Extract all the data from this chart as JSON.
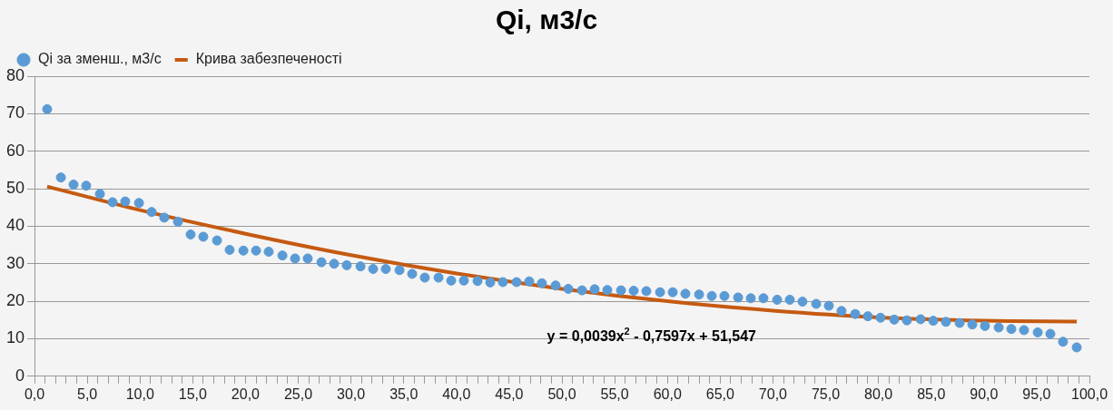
{
  "chart_data": {
    "type": "scatter",
    "title": "Qi, м3/с",
    "xlim": [
      0,
      100
    ],
    "xticks": [
      {
        "value": 0,
        "label": "0,0"
      },
      {
        "value": 1,
        "label": null
      },
      {
        "value": 2,
        "label": null
      },
      {
        "value": 3,
        "label": null
      },
      {
        "value": 4,
        "label": null
      },
      {
        "value": 5,
        "label": "5,0"
      },
      {
        "value": 6,
        "label": null
      },
      {
        "value": 7,
        "label": null
      },
      {
        "value": 8,
        "label": null
      },
      {
        "value": 9,
        "label": null
      },
      {
        "value": 10,
        "label": "10,0"
      },
      {
        "value": 11,
        "label": null
      },
      {
        "value": 12,
        "label": null
      },
      {
        "value": 13,
        "label": null
      },
      {
        "value": 14,
        "label": null
      },
      {
        "value": 15,
        "label": "15,0"
      },
      {
        "value": 16,
        "label": null
      },
      {
        "value": 17,
        "label": null
      },
      {
        "value": 18,
        "label": null
      },
      {
        "value": 19,
        "label": null
      },
      {
        "value": 20,
        "label": "20,0"
      },
      {
        "value": 21,
        "label": null
      },
      {
        "value": 22,
        "label": null
      },
      {
        "value": 23,
        "label": null
      },
      {
        "value": 24,
        "label": null
      },
      {
        "value": 25,
        "label": "25,0"
      },
      {
        "value": 26,
        "label": null
      },
      {
        "value": 27,
        "label": null
      },
      {
        "value": 28,
        "label": null
      },
      {
        "value": 29,
        "label": null
      },
      {
        "value": 30,
        "label": "30,0"
      },
      {
        "value": 31,
        "label": null
      },
      {
        "value": 32,
        "label": null
      },
      {
        "value": 33,
        "label": null
      },
      {
        "value": 34,
        "label": null
      },
      {
        "value": 35,
        "label": "35,0"
      },
      {
        "value": 36,
        "label": null
      },
      {
        "value": 37,
        "label": null
      },
      {
        "value": 38,
        "label": null
      },
      {
        "value": 39,
        "label": null
      },
      {
        "value": 40,
        "label": "40,0"
      },
      {
        "value": 41,
        "label": null
      },
      {
        "value": 42,
        "label": null
      },
      {
        "value": 43,
        "label": null
      },
      {
        "value": 44,
        "label": null
      },
      {
        "value": 45,
        "label": "45,0"
      },
      {
        "value": 46,
        "label": null
      },
      {
        "value": 47,
        "label": null
      },
      {
        "value": 48,
        "label": null
      },
      {
        "value": 49,
        "label": null
      },
      {
        "value": 50,
        "label": "50,0"
      },
      {
        "value": 51,
        "label": null
      },
      {
        "value": 52,
        "label": null
      },
      {
        "value": 53,
        "label": null
      },
      {
        "value": 54,
        "label": null
      },
      {
        "value": 55,
        "label": "55,0"
      },
      {
        "value": 56,
        "label": null
      },
      {
        "value": 57,
        "label": null
      },
      {
        "value": 58,
        "label": null
      },
      {
        "value": 59,
        "label": null
      },
      {
        "value": 60,
        "label": "60,0"
      },
      {
        "value": 61,
        "label": null
      },
      {
        "value": 62,
        "label": null
      },
      {
        "value": 63,
        "label": null
      },
      {
        "value": 64,
        "label": null
      },
      {
        "value": 65,
        "label": "65,0"
      },
      {
        "value": 66,
        "label": null
      },
      {
        "value": 67,
        "label": null
      },
      {
        "value": 68,
        "label": null
      },
      {
        "value": 69,
        "label": null
      },
      {
        "value": 70,
        "label": "70,0"
      },
      {
        "value": 71,
        "label": null
      },
      {
        "value": 72,
        "label": null
      },
      {
        "value": 73,
        "label": null
      },
      {
        "value": 74,
        "label": null
      },
      {
        "value": 75,
        "label": "75,0"
      },
      {
        "value": 76,
        "label": null
      },
      {
        "value": 77,
        "label": null
      },
      {
        "value": 78,
        "label": null
      },
      {
        "value": 79,
        "label": null
      },
      {
        "value": 80,
        "label": "80,0"
      },
      {
        "value": 81,
        "label": null
      },
      {
        "value": 82,
        "label": null
      },
      {
        "value": 83,
        "label": null
      },
      {
        "value": 84,
        "label": null
      },
      {
        "value": 85,
        "label": "85,0"
      },
      {
        "value": 86,
        "label": null
      },
      {
        "value": 87,
        "label": null
      },
      {
        "value": 88,
        "label": null
      },
      {
        "value": 89,
        "label": null
      },
      {
        "value": 90,
        "label": "90,0"
      },
      {
        "value": 91,
        "label": null
      },
      {
        "value": 92,
        "label": null
      },
      {
        "value": 93,
        "label": null
      },
      {
        "value": 94,
        "label": null
      },
      {
        "value": 95,
        "label": "95,0"
      },
      {
        "value": 96,
        "label": null
      },
      {
        "value": 97,
        "label": null
      },
      {
        "value": 98,
        "label": null
      },
      {
        "value": 99,
        "label": null
      },
      {
        "value": 100,
        "label": "100,0"
      }
    ],
    "ylim": [
      0,
      80
    ],
    "yticks": [
      0,
      10,
      20,
      30,
      40,
      50,
      60,
      70,
      80
    ],
    "grid": "y",
    "legend": "top left",
    "series": [
      {
        "name": "Qi за зменш., м3/с",
        "marker": "circle",
        "color": "#5b9bd5",
        "x": [
          1.2,
          2.5,
          3.7,
          4.9,
          6.2,
          7.4,
          8.6,
          9.9,
          11.1,
          12.3,
          13.6,
          14.8,
          16.0,
          17.3,
          18.5,
          19.8,
          21.0,
          22.2,
          23.5,
          24.7,
          25.9,
          27.2,
          28.4,
          29.6,
          30.9,
          32.1,
          33.3,
          34.6,
          35.8,
          37.0,
          38.3,
          39.5,
          40.7,
          42.0,
          43.2,
          44.4,
          45.7,
          46.9,
          48.1,
          49.4,
          50.6,
          51.9,
          53.1,
          54.3,
          55.6,
          56.8,
          58.0,
          59.3,
          60.5,
          61.7,
          63.0,
          64.2,
          65.4,
          66.7,
          67.9,
          69.1,
          70.4,
          71.6,
          72.8,
          74.1,
          75.3,
          76.5,
          77.8,
          79.0,
          80.2,
          81.5,
          82.7,
          84.0,
          85.2,
          86.4,
          87.7,
          88.9,
          90.1,
          91.4,
          92.6,
          93.8,
          95.1,
          96.3,
          97.5,
          98.8
        ],
        "values": [
          71.2,
          53.0,
          51.1,
          50.8,
          48.6,
          46.4,
          46.6,
          46.2,
          43.8,
          42.3,
          41.2,
          37.8,
          37.2,
          36.2,
          33.7,
          33.5,
          33.5,
          33.2,
          32.2,
          31.4,
          31.4,
          30.4,
          30.0,
          29.6,
          29.3,
          28.6,
          28.6,
          28.3,
          27.3,
          26.3,
          26.3,
          25.5,
          25.5,
          25.4,
          25.0,
          25.1,
          25.1,
          25.3,
          24.8,
          24.2,
          23.3,
          22.9,
          23.2,
          23.0,
          22.9,
          22.8,
          22.7,
          22.4,
          22.4,
          22.0,
          21.8,
          21.4,
          21.4,
          21.0,
          20.8,
          20.8,
          20.4,
          20.4,
          19.9,
          19.3,
          18.8,
          17.4,
          16.6,
          16.0,
          15.6,
          15.1,
          14.9,
          15.2,
          14.8,
          14.5,
          14.2,
          13.8,
          13.4,
          13.0,
          12.6,
          12.3,
          11.7,
          11.3,
          9.2,
          7.7
        ]
      },
      {
        "name": "Крива забезпеченості",
        "type": "line",
        "marker": "none",
        "line_style": "solid",
        "color": "#c55a11",
        "x": [
          1.2,
          10,
          20,
          30,
          40,
          50,
          60,
          70,
          80,
          90,
          98.8
        ],
        "values": [
          50.6,
          44.3,
          38.0,
          32.3,
          27.4,
          23.3,
          20.0,
          17.5,
          15.7,
          14.8,
          14.6
        ]
      }
    ],
    "annotations": [
      "y = 0,0039x$^{2}$ - 0,7597x + 51,547"
    ]
  }
}
